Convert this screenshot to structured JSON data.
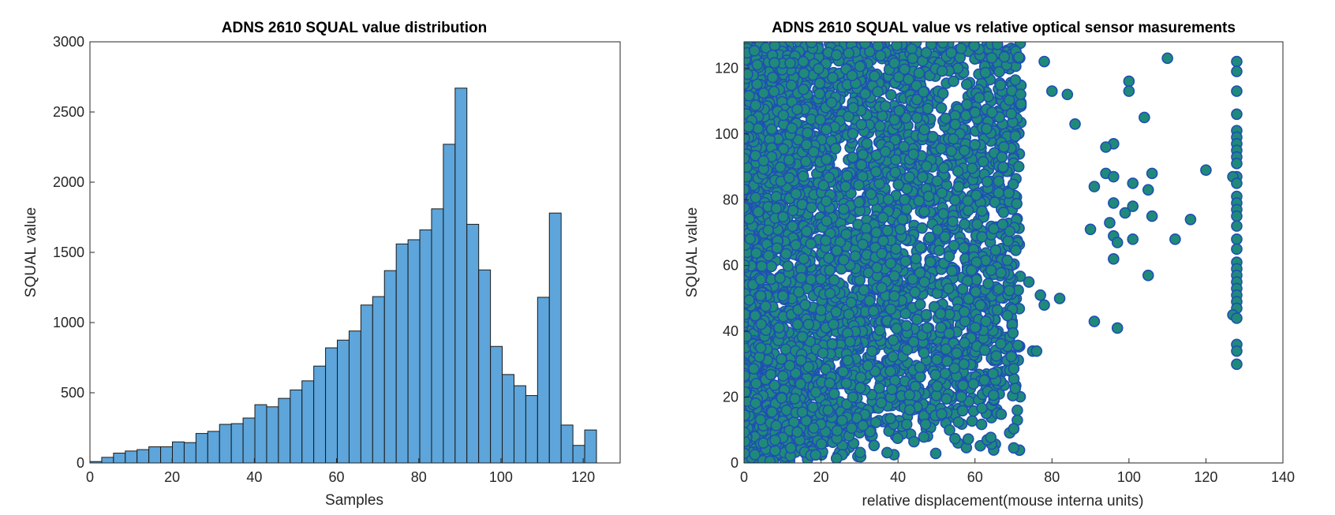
{
  "figure": {
    "background": "#ffffff"
  },
  "chart_data": [
    {
      "type": "bar",
      "title": "ADNS 2610 SQUAL value distribution",
      "xlabel": "Samples",
      "ylabel": "SQUAL value",
      "xlim": [
        0,
        129
      ],
      "ylim": [
        0,
        3000
      ],
      "xticks": [
        0,
        20,
        40,
        60,
        80,
        100,
        120
      ],
      "yticks": [
        0,
        500,
        1000,
        1500,
        2000,
        2500,
        3000
      ],
      "bin_width": 2.866,
      "bin_start": 0,
      "values": [
        10,
        40,
        70,
        85,
        95,
        115,
        115,
        150,
        145,
        210,
        225,
        275,
        280,
        320,
        415,
        400,
        460,
        520,
        585,
        690,
        820,
        875,
        940,
        1125,
        1185,
        1370,
        1560,
        1590,
        1660,
        1810,
        2270,
        2670,
        1700,
        1375,
        830,
        630,
        550,
        480,
        1180,
        1780,
        270,
        125,
        235
      ],
      "bar_fill": "#5DA5DA",
      "bar_edge": "#1a1a1a",
      "grid": false
    },
    {
      "type": "scatter",
      "title": "ADNS 2610 SQUAL value vs relative optical sensor masurements",
      "xlabel": "relative displacement(mouse interna units)",
      "ylabel": "SQUAL value",
      "xlim": [
        0,
        140
      ],
      "ylim": [
        0,
        128
      ],
      "xticks": [
        0,
        20,
        40,
        60,
        80,
        100,
        120,
        140
      ],
      "yticks": [
        0,
        20,
        40,
        60,
        80,
        100,
        120
      ],
      "marker_fill": "#1f8a7a",
      "marker_edge": "#1f4fb4",
      "grid": false,
      "points": [
        [
          110,
          123
        ],
        [
          128,
          122
        ],
        [
          78,
          122
        ],
        [
          128,
          119
        ],
        [
          100,
          116
        ],
        [
          80,
          113
        ],
        [
          128,
          113
        ],
        [
          84,
          112
        ],
        [
          100,
          113
        ],
        [
          128,
          106
        ],
        [
          104,
          105
        ],
        [
          86,
          103
        ],
        [
          128,
          101
        ],
        [
          128,
          99
        ],
        [
          96,
          97
        ],
        [
          128,
          97
        ],
        [
          94,
          96
        ],
        [
          128,
          95
        ],
        [
          128,
          93
        ],
        [
          128,
          91
        ],
        [
          120,
          89
        ],
        [
          106,
          88
        ],
        [
          94,
          88
        ],
        [
          128,
          87
        ],
        [
          127,
          87
        ],
        [
          96,
          87
        ],
        [
          101,
          85
        ],
        [
          128,
          85
        ],
        [
          105,
          83
        ],
        [
          91,
          84
        ],
        [
          128,
          81
        ],
        [
          128,
          79
        ],
        [
          101,
          78
        ],
        [
          96,
          79
        ],
        [
          128,
          77
        ],
        [
          99,
          76
        ],
        [
          128,
          75
        ],
        [
          106,
          75
        ],
        [
          116,
          74
        ],
        [
          95,
          73
        ],
        [
          128,
          72
        ],
        [
          90,
          71
        ],
        [
          96,
          69
        ],
        [
          112,
          68
        ],
        [
          101,
          68
        ],
        [
          128,
          68
        ],
        [
          97,
          67
        ],
        [
          128,
          65
        ],
        [
          96,
          62
        ],
        [
          128,
          61
        ],
        [
          128,
          59
        ],
        [
          105,
          57
        ],
        [
          128,
          57
        ],
        [
          128,
          55
        ],
        [
          128,
          53
        ],
        [
          128,
          51
        ],
        [
          128,
          49
        ],
        [
          128,
          47
        ],
        [
          127,
          45
        ],
        [
          128,
          44
        ],
        [
          91,
          43
        ],
        [
          97,
          41
        ],
        [
          128,
          36
        ],
        [
          128,
          34
        ],
        [
          128,
          30
        ],
        [
          78,
          48
        ],
        [
          82,
          50
        ],
        [
          77,
          51
        ],
        [
          74,
          55
        ],
        [
          75,
          34
        ],
        [
          76,
          34
        ],
        [
          71,
          16
        ],
        [
          71,
          13
        ],
        [
          69,
          28
        ],
        [
          63,
          27
        ],
        [
          66,
          40
        ],
        [
          59,
          30
        ],
        [
          59,
          26
        ],
        [
          54,
          16
        ],
        [
          57,
          24
        ],
        [
          55,
          29
        ]
      ],
      "dense_region_x": [
        0,
        75
      ],
      "dense_region_y": [
        0,
        128
      ]
    }
  ]
}
